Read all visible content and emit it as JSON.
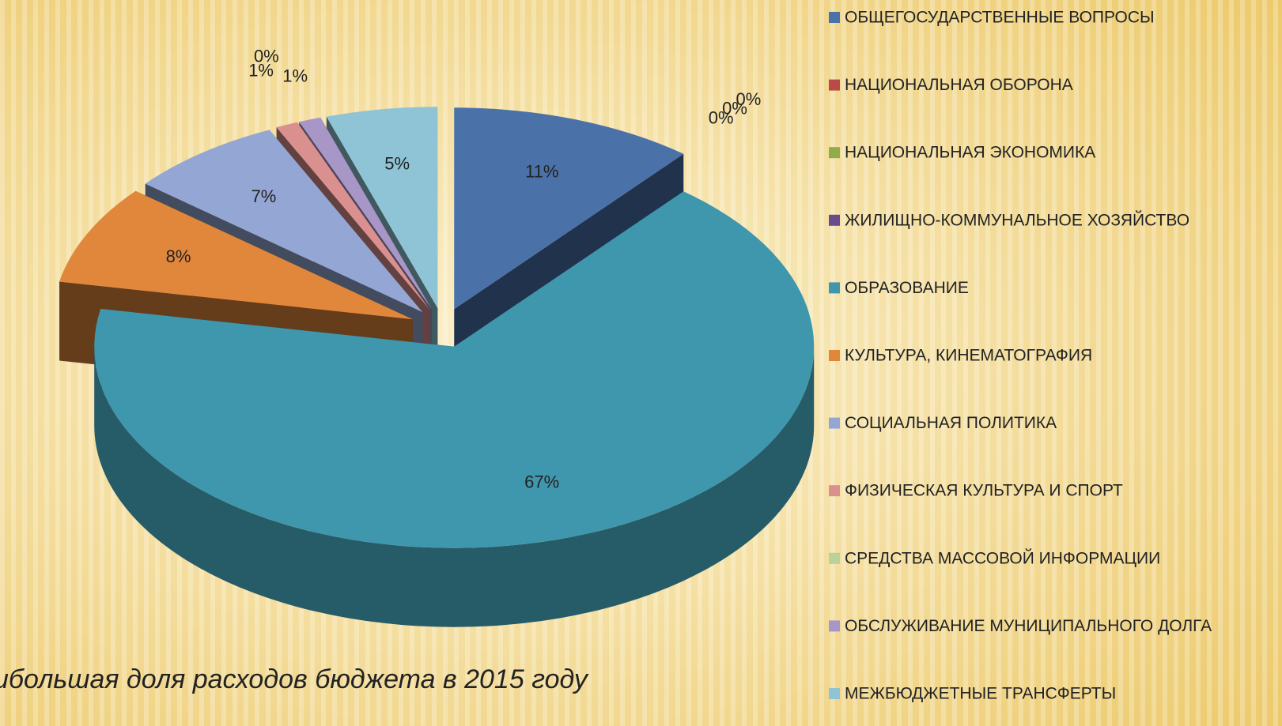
{
  "chart_data": {
    "type": "pie",
    "title": "ибольшая доля расходов бюджета в 2015 году",
    "categories": [
      "ОБЩЕГОСУДАРСТВЕННЫЕ ВОПРОСЫ",
      "НАЦИОНАЛЬНАЯ ОБОРОНА",
      "НАЦИОНАЛЬНАЯ ЭКОНОМИКА",
      "ЖИЛИЩНО-КОММУНАЛЬНОЕ ХОЗЯЙСТВО",
      "ОБРАЗОВАНИЕ",
      "КУЛЬТУРА, КИНЕМАТОГРАФИЯ",
      "СОЦИАЛЬНАЯ ПОЛИТИКА",
      "ФИЗИЧЕСКАЯ КУЛЬТУРА И СПОРТ",
      "СРЕДСТВА МАССОВОЙ ИНФОРМАЦИИ",
      "ОБСЛУЖИВАНИЕ МУНИЦИПАЛЬНОГО ДОЛГА",
      "МЕЖБЮДЖЕТНЫЕ ТРАНСФЕРТЫ"
    ],
    "values": [
      11,
      0,
      0,
      0,
      67,
      8,
      7,
      1,
      0,
      1,
      5
    ],
    "value_labels": [
      "11%",
      "0%",
      "0%",
      "0%",
      "67%",
      "8%",
      "7%",
      "1%",
      "0%",
      "1%",
      "5%"
    ],
    "colors": [
      "#4a72a8",
      "#b94a48",
      "#8fab4a",
      "#6a4c8c",
      "#3f97ad",
      "#e0873b",
      "#94a6d4",
      "#d9908e",
      "#b8d29a",
      "#a796c6",
      "#8ec4d6"
    ],
    "legend": "right"
  }
}
